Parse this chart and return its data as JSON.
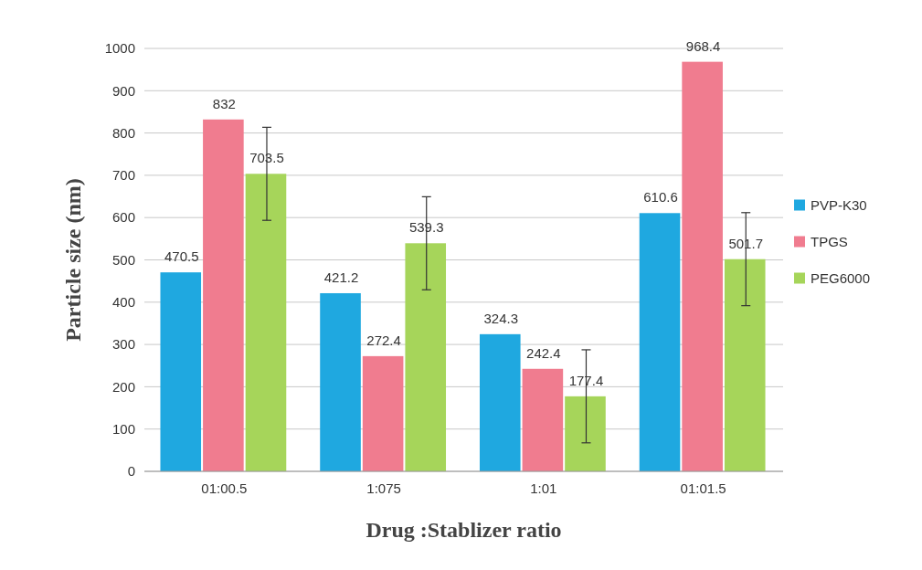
{
  "chart_data": {
    "type": "bar",
    "xlabel": "Drug :Stablizer ratio",
    "ylabel": "Particle size (nm)",
    "categories": [
      "01:00.5",
      "1:075",
      "1:01",
      "01:01.5"
    ],
    "series": [
      {
        "name": "PVP-K30",
        "color": "#1fa8e0",
        "values": [
          470.5,
          421.2,
          324.3,
          610.6
        ]
      },
      {
        "name": "TPGS",
        "color": "#f07c8f",
        "values": [
          832,
          272.4,
          242.4,
          968.4
        ]
      },
      {
        "name": "PEG6000",
        "color": "#a6d55a",
        "values": [
          703.5,
          539.3,
          177.4,
          501.7
        ],
        "errors": [
          110,
          110,
          110,
          110
        ]
      }
    ],
    "ylim": [
      0,
      1000
    ],
    "yticks": [
      0,
      100,
      200,
      300,
      400,
      500,
      600,
      700,
      800,
      900,
      1000
    ],
    "grid": "y",
    "legend": "right",
    "data_labels": true
  }
}
